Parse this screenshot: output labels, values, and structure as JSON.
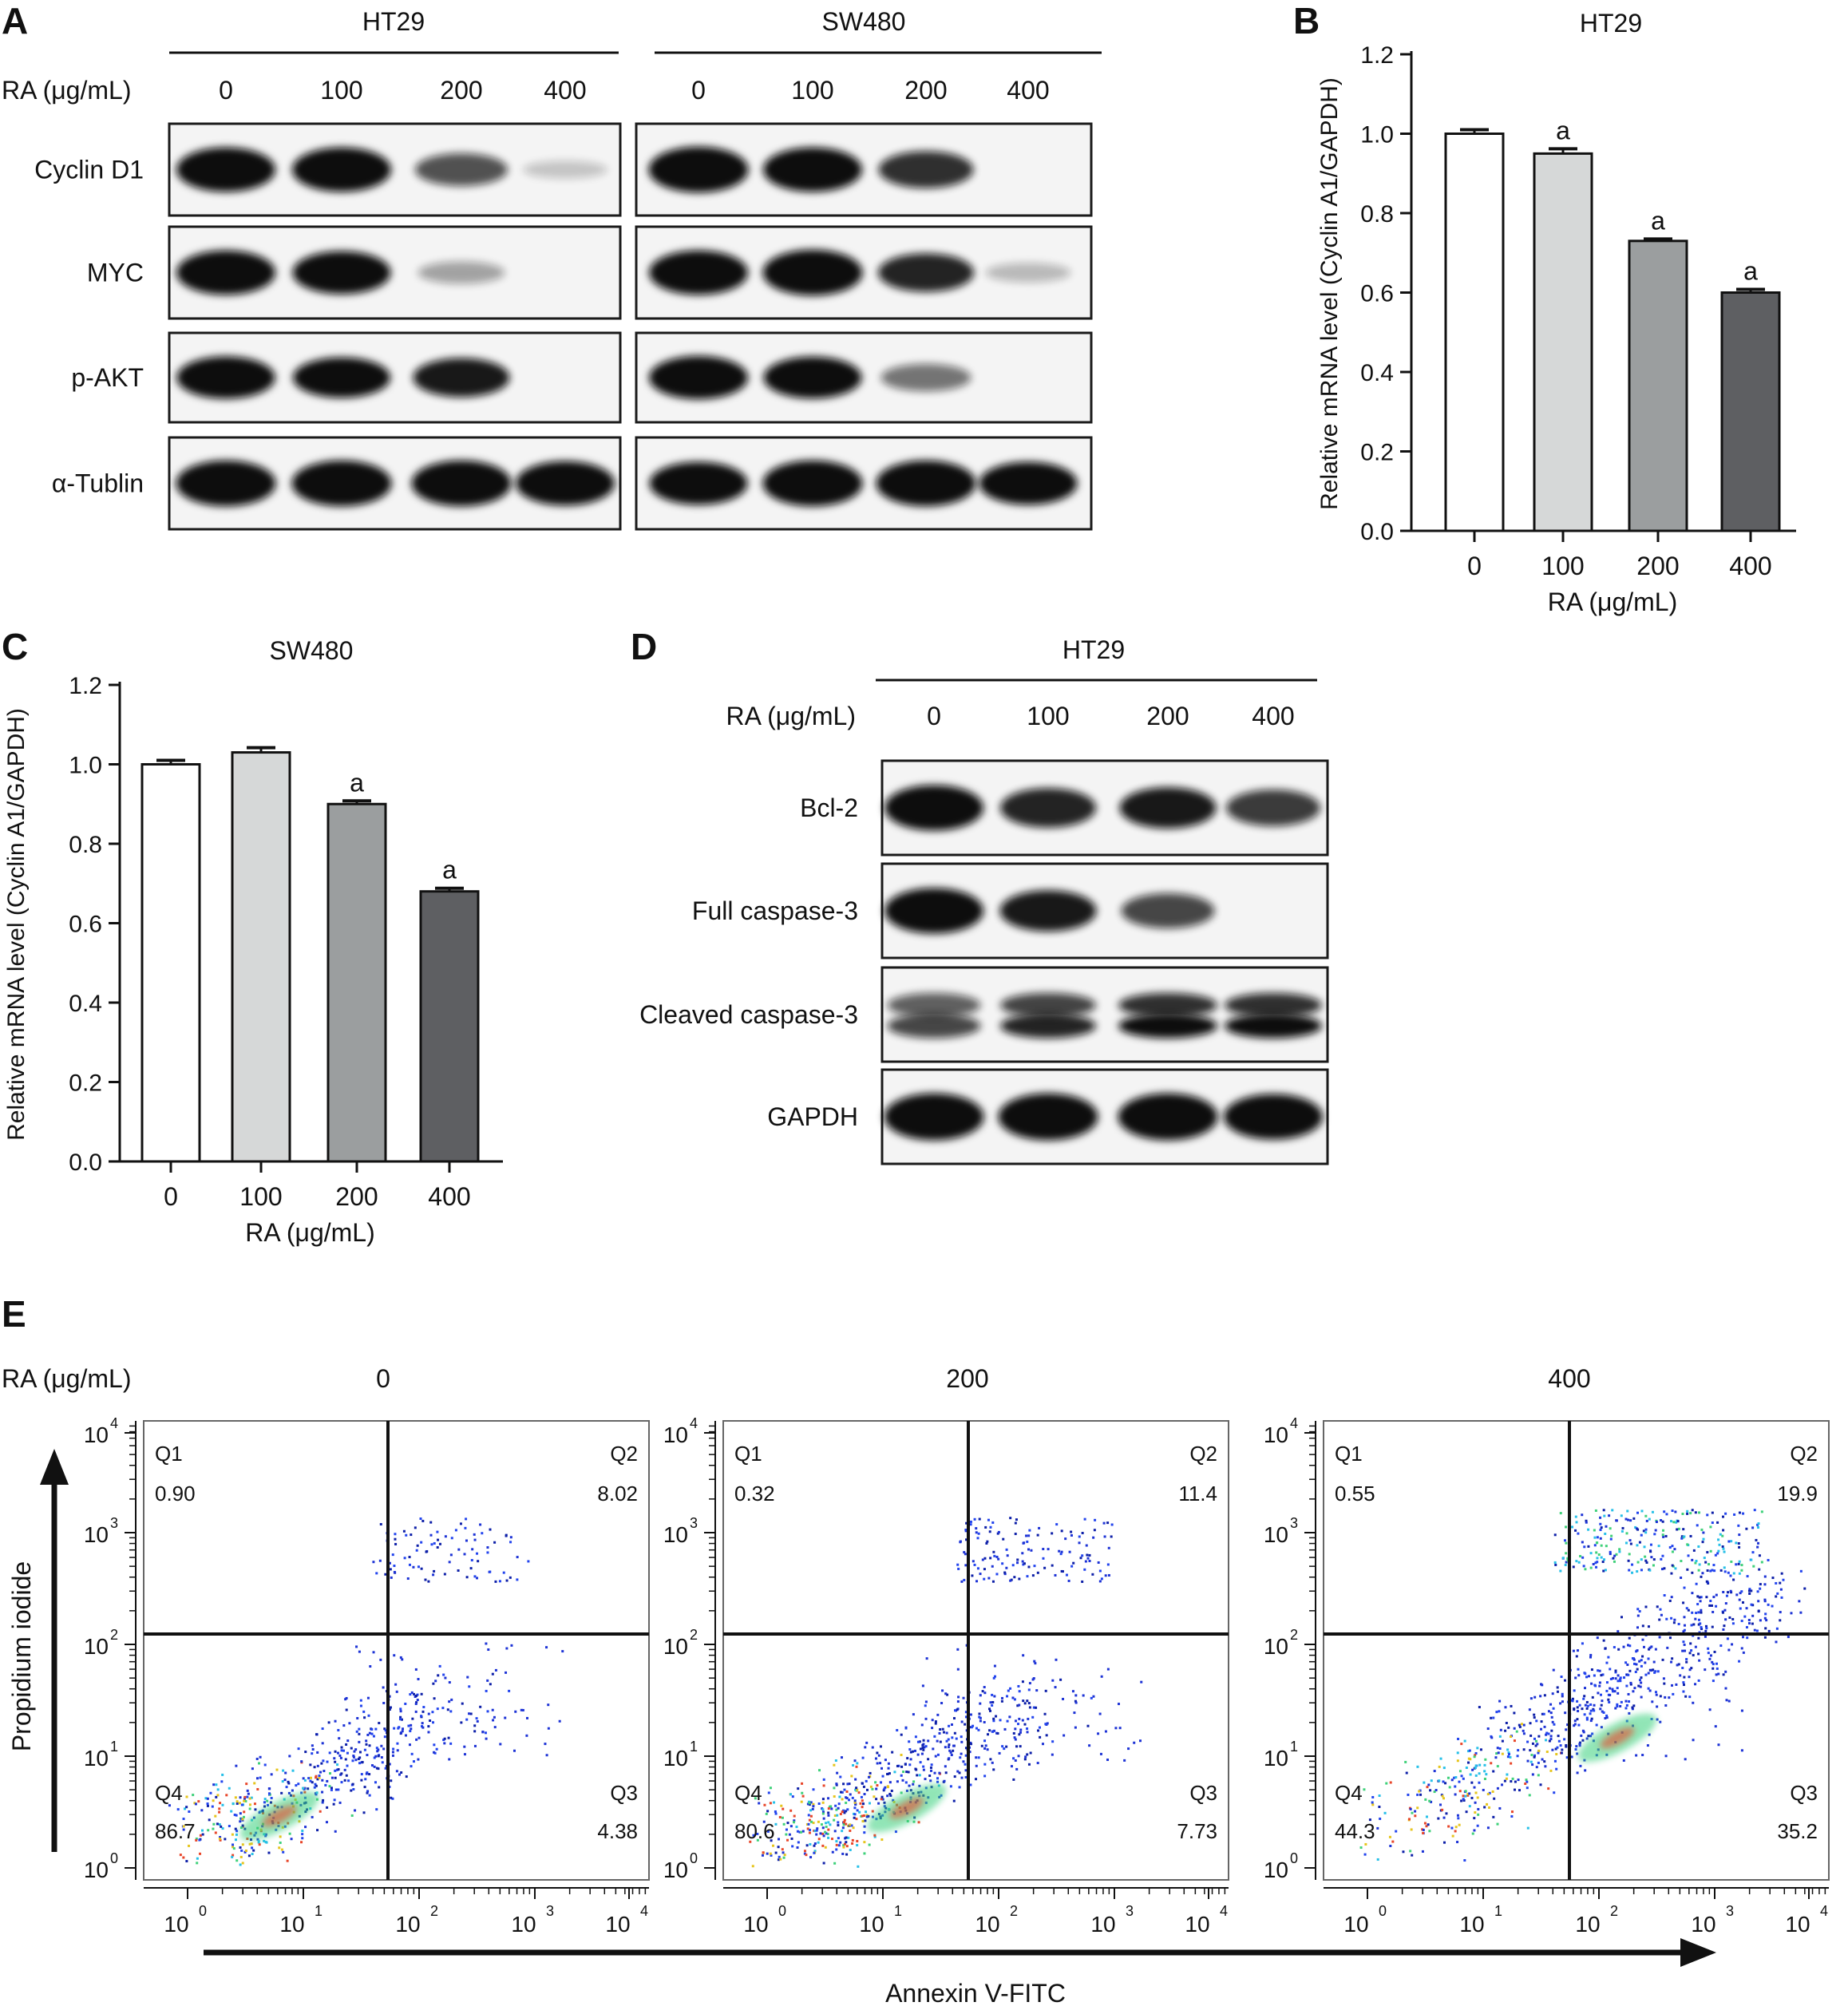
{
  "panels": {
    "A": "A",
    "B": "B",
    "C": "C",
    "D": "D",
    "E": "E"
  },
  "colors": {
    "band": "#0b0b0b",
    "blot_bg": "#f4f4f4",
    "bar_0": "#ffffff",
    "bar_100": "#d6d8d8",
    "bar_200": "#9b9e9f",
    "bar_400": "#5e5f62"
  },
  "panel_a": {
    "cell_lines": [
      "HT29",
      "SW480"
    ],
    "ra_label": "RA (μg/mL)",
    "doses": [
      "0",
      "100",
      "200",
      "400"
    ],
    "proteins": [
      "Cyclin D1",
      "MYC",
      "p-AKT",
      "α-Tublin"
    ],
    "band_intensity": {
      "HT29": [
        [
          0.95,
          0.95,
          0.55,
          0.05
        ],
        [
          0.95,
          0.9,
          0.2,
          0.0
        ],
        [
          0.92,
          0.85,
          0.8,
          0.0
        ],
        [
          1.0,
          1.0,
          1.0,
          0.95
        ]
      ],
      "SW480": [
        [
          1.0,
          0.95,
          0.7,
          0.0
        ],
        [
          0.95,
          1.0,
          0.75,
          0.1
        ],
        [
          0.95,
          0.9,
          0.4,
          0.0
        ],
        [
          0.9,
          1.0,
          1.0,
          0.9
        ]
      ]
    }
  },
  "panel_d": {
    "cell_line": "HT29",
    "ra_label": "RA (μg/mL)",
    "doses": [
      "0",
      "100",
      "200",
      "400"
    ],
    "proteins": [
      "Bcl-2",
      "Full caspase-3",
      "Cleaved caspase-3",
      "GAPDH"
    ],
    "band_intensity": [
      [
        0.95,
        0.75,
        0.8,
        0.65
      ],
      [
        0.95,
        0.8,
        0.6,
        0.0
      ],
      [
        0.6,
        0.75,
        0.95,
        0.85
      ],
      [
        1.0,
        1.0,
        1.0,
        0.95
      ]
    ]
  },
  "panel_e": {
    "ra_label": "RA (μg/mL)",
    "xlabel": "Annexin V-FITC",
    "ylabel": "Propidium iodide",
    "plots": [
      {
        "dose": "0",
        "q1": "0.90",
        "q2": "8.02",
        "q3": "4.38",
        "q4": "86.7"
      },
      {
        "dose": "200",
        "q1": "0.32",
        "q2": "11.4",
        "q3": "7.73",
        "q4": "80.6"
      },
      {
        "dose": "400",
        "q1": "0.55",
        "q2": "19.9",
        "q3": "35.2",
        "q4": "44.3"
      }
    ],
    "quadrant_names": [
      "Q1",
      "Q2",
      "Q3",
      "Q4"
    ],
    "tick_base": "10",
    "tick_exponents": [
      "0",
      "1",
      "2",
      "3",
      "4"
    ]
  },
  "chart_data": [
    {
      "type": "bar",
      "title": "HT29",
      "categories": [
        "0",
        "100",
        "200",
        "400"
      ],
      "values": [
        1.0,
        0.95,
        0.73,
        0.6
      ],
      "errors": [
        0.01,
        0.012,
        0.005,
        0.008
      ],
      "annotations": [
        "",
        "a",
        "a",
        "a"
      ],
      "xlabel": "RA (μg/mL)",
      "ylabel": "Relative mRNA level (Cyclin A1/GAPDH)",
      "ylim": [
        0,
        1.2
      ],
      "yticks": [
        "0.0",
        "0.2",
        "0.4",
        "0.6",
        "0.8",
        "1.0",
        "1.2"
      ],
      "grid": false
    },
    {
      "type": "bar",
      "title": "SW480",
      "categories": [
        "0",
        "100",
        "200",
        "400"
      ],
      "values": [
        1.0,
        1.03,
        0.9,
        0.68
      ],
      "errors": [
        0.01,
        0.012,
        0.008,
        0.008
      ],
      "annotations": [
        "",
        "",
        "a",
        "a"
      ],
      "xlabel": "RA (μg/mL)",
      "ylabel": "Relative mRNA level (Cyclin A1/GAPDH)",
      "ylim": [
        0,
        1.2
      ],
      "yticks": [
        "0.0",
        "0.2",
        "0.4",
        "0.6",
        "0.8",
        "1.0",
        "1.2"
      ],
      "grid": false
    }
  ]
}
